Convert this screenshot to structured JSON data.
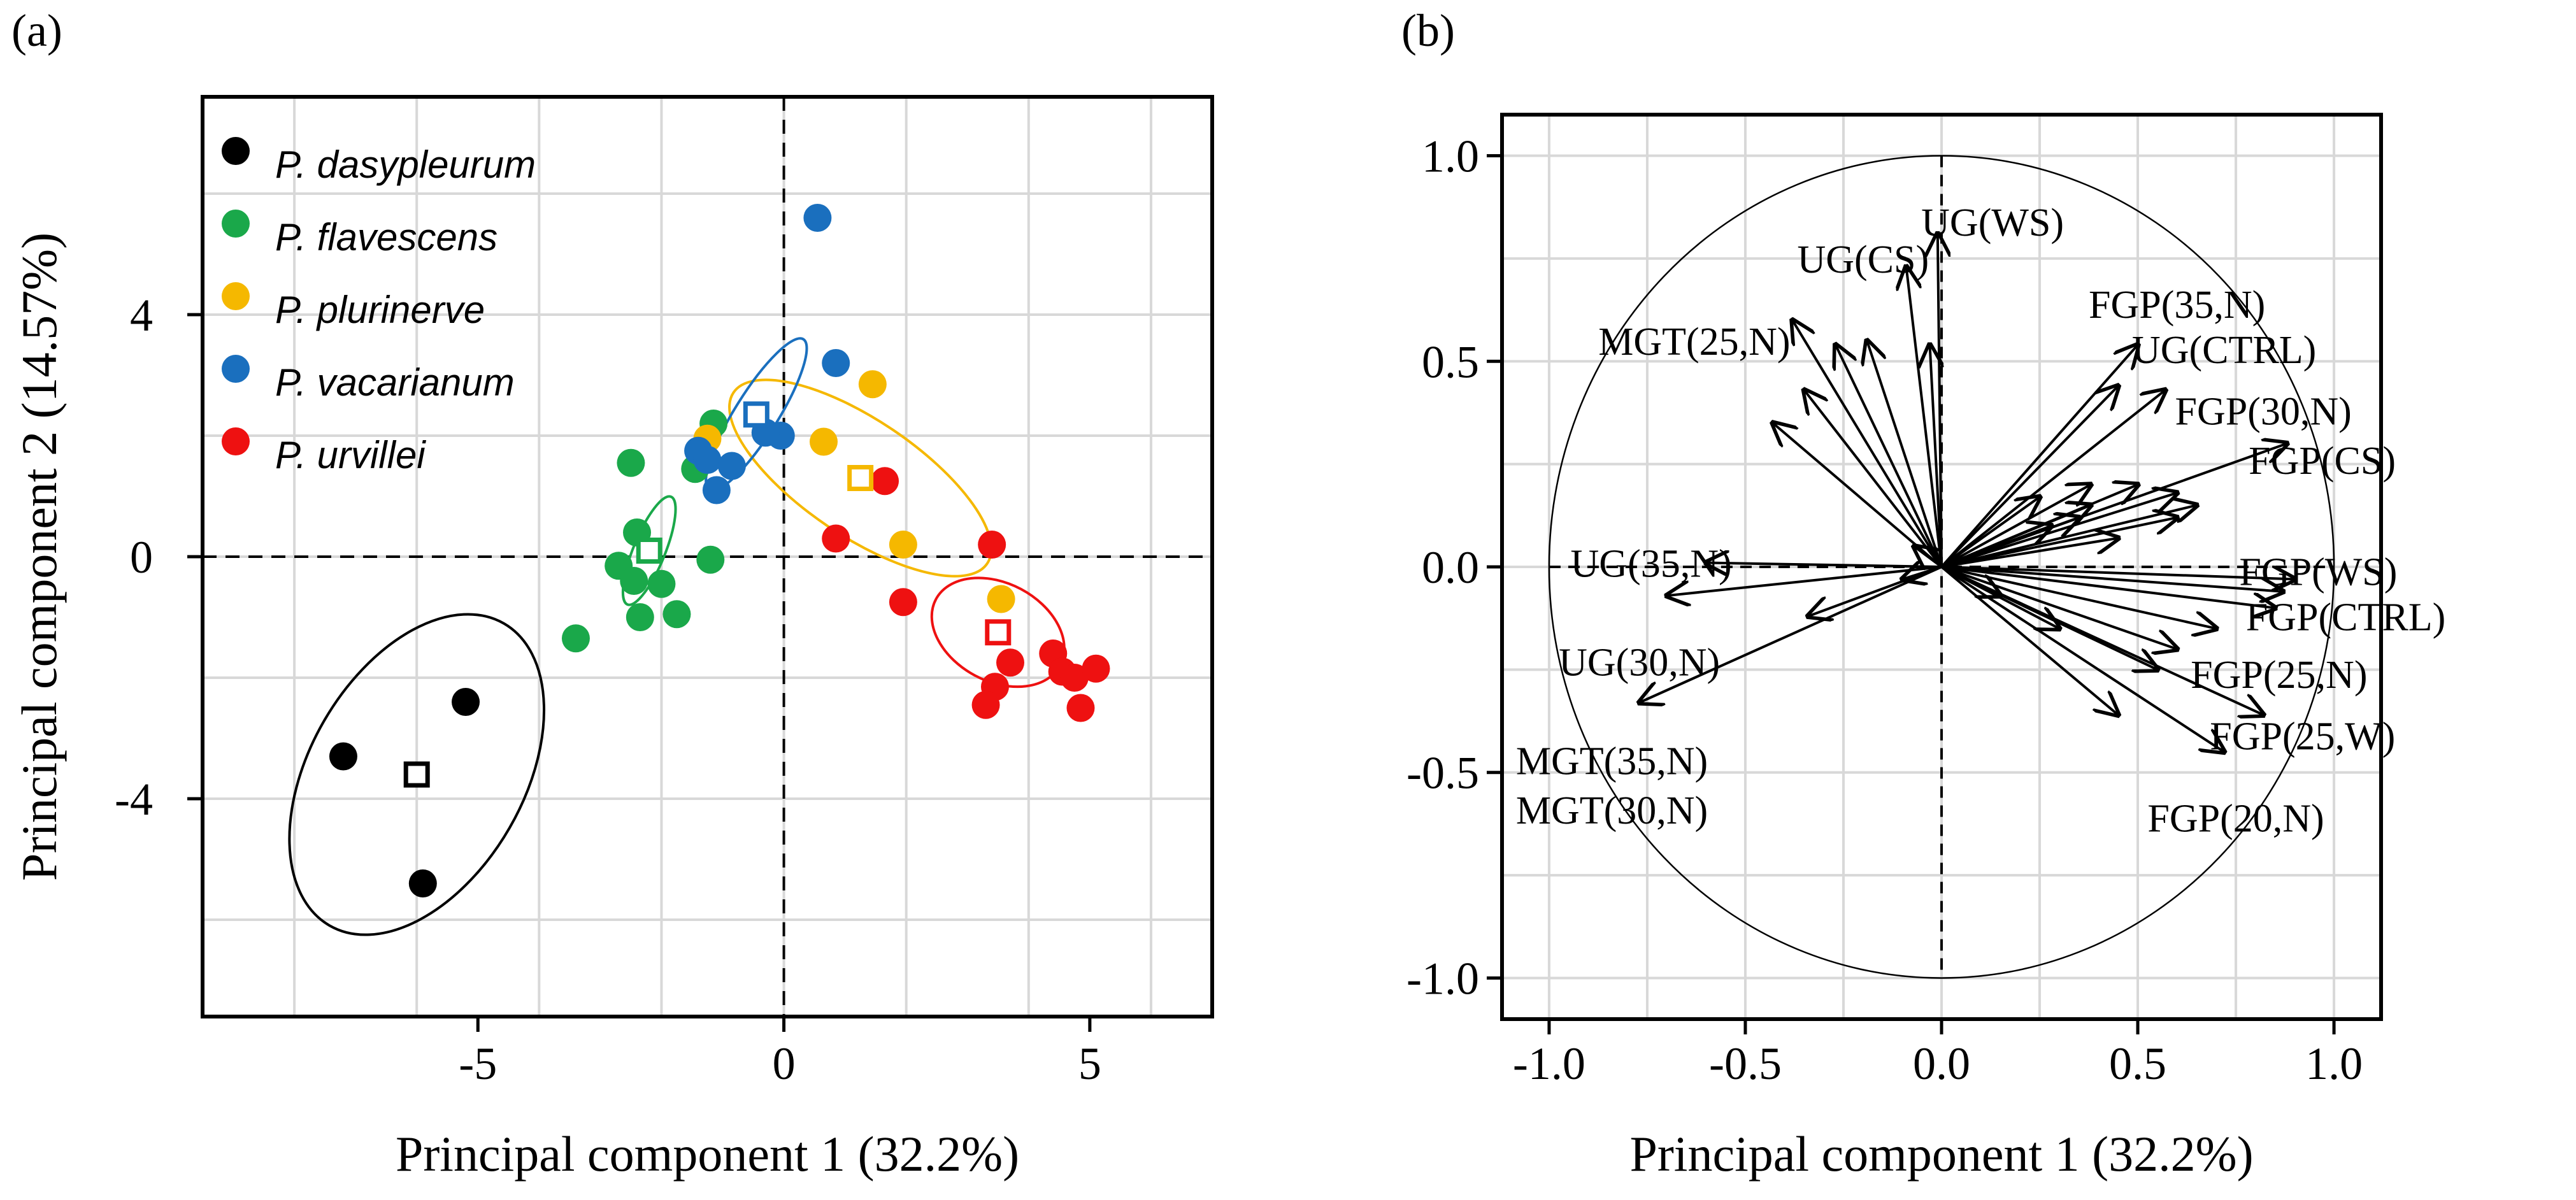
{
  "chart_data": [
    {
      "panel_label": "(a)",
      "type": "scatter",
      "xlabel": "Principal component 1 (32.2%)",
      "ylabel": "Principal component 2 (14.57%)",
      "xlim": [
        -9.5,
        7
      ],
      "ylim": [
        -7.6,
        7.6
      ],
      "xticks": [
        -5,
        0,
        5
      ],
      "xtick_labels": [
        "-5",
        "0",
        "5"
      ],
      "yticks": [
        -4,
        0,
        4
      ],
      "ytick_labels": [
        "-4",
        "0",
        "4"
      ],
      "grid": true,
      "reference_lines": {
        "x": 0,
        "y": 0,
        "style": "dashed"
      },
      "legend_position": "top-left",
      "series": [
        {
          "name": "P. dasypleurum",
          "color": "#000000",
          "points": [
            [
              -7.2,
              -3.3
            ],
            [
              -5.2,
              -2.4
            ],
            [
              -5.9,
              -5.4
            ]
          ],
          "centroid": [
            -6.0,
            -3.6
          ],
          "ellipse": {
            "rx_data": 2.85,
            "ry_data": 1.75,
            "angle_deg": -60
          }
        },
        {
          "name": "P. flavescens",
          "color": "#1aa84a",
          "points": [
            [
              -2.5,
              1.55
            ],
            [
              -1.15,
              2.2
            ],
            [
              -1.45,
              1.45
            ],
            [
              -2.4,
              0.4
            ],
            [
              -2.7,
              -0.15
            ],
            [
              -2.45,
              -0.4
            ],
            [
              -2.0,
              -0.45
            ],
            [
              -1.2,
              -0.05
            ],
            [
              -2.35,
              -1.0
            ],
            [
              -1.75,
              -0.95
            ],
            [
              -3.4,
              -1.35
            ]
          ],
          "centroid": [
            -2.2,
            0.1
          ],
          "ellipse": {
            "rx_data": 0.95,
            "ry_data": 0.26,
            "angle_deg": -68
          }
        },
        {
          "name": "P. plurinerve",
          "color": "#f5b800",
          "points": [
            [
              -1.25,
              1.95
            ],
            [
              1.45,
              2.85
            ],
            [
              0.65,
              1.9
            ],
            [
              1.95,
              0.2
            ],
            [
              3.55,
              -0.7
            ]
          ],
          "centroid": [
            1.25,
            1.3
          ],
          "ellipse": {
            "rx_data": 2.5,
            "ry_data": 0.95,
            "angle_deg": 34
          }
        },
        {
          "name": "P. vacarianum",
          "color": "#1a6fbe",
          "points": [
            [
              0.55,
              5.6
            ],
            [
              0.85,
              3.2
            ],
            [
              -0.05,
              2.0
            ],
            [
              -0.3,
              2.05
            ],
            [
              -1.4,
              1.75
            ],
            [
              -1.25,
              1.6
            ],
            [
              -0.85,
              1.5
            ],
            [
              -1.1,
              1.1
            ]
          ],
          "centroid": [
            -0.45,
            2.35
          ],
          "ellipse": {
            "rx_data": 1.45,
            "ry_data": 0.35,
            "angle_deg": -58
          }
        },
        {
          "name": "P. urvillei",
          "color": "#ee1111",
          "points": [
            [
              1.65,
              1.25
            ],
            [
              0.85,
              0.3
            ],
            [
              3.4,
              0.2
            ],
            [
              1.95,
              -0.75
            ],
            [
              4.4,
              -1.6
            ],
            [
              3.7,
              -1.75
            ],
            [
              4.55,
              -1.9
            ],
            [
              4.75,
              -2.0
            ],
            [
              5.1,
              -1.85
            ],
            [
              3.45,
              -2.15
            ],
            [
              3.3,
              -2.45
            ],
            [
              4.85,
              -2.5
            ]
          ],
          "centroid": [
            3.5,
            -1.25
          ],
          "ellipse": {
            "rx_data": 1.15,
            "ry_data": 0.8,
            "angle_deg": 28
          }
        }
      ]
    },
    {
      "panel_label": "(b)",
      "type": "biplot",
      "xlabel": "Principal component 1 (32.2%)",
      "xlim": [
        -1.12,
        1.12
      ],
      "ylim": [
        -1.1,
        1.1
      ],
      "xticks": [
        -1.0,
        -0.5,
        0.0,
        0.5,
        1.0
      ],
      "xtick_labels": [
        "-1.0",
        "-0.5",
        "0.0",
        "0.5",
        "1.0"
      ],
      "yticks": [
        -1.0,
        -0.5,
        0.0,
        0.5,
        1.0
      ],
      "ytick_labels": [
        "-1.0",
        "-0.5",
        "0.0",
        "0.5",
        "1.0"
      ],
      "grid": true,
      "unit_circle_radius": 1.0,
      "reference_lines": {
        "x": 0,
        "y": 0,
        "style": "dashed"
      },
      "vectors": [
        [
          -0.01,
          0.81
        ],
        [
          -0.09,
          0.73
        ],
        [
          -0.19,
          0.55
        ],
        [
          -0.38,
          0.6
        ],
        [
          -0.27,
          0.54
        ],
        [
          -0.35,
          0.43
        ],
        [
          -0.43,
          0.35
        ],
        [
          -0.03,
          0.54
        ],
        [
          -0.6,
          0.01
        ],
        [
          -0.7,
          -0.07
        ],
        [
          -0.34,
          -0.12
        ],
        [
          -0.1,
          -0.03
        ],
        [
          -0.77,
          -0.33
        ],
        [
          -0.07,
          0.05
        ],
        [
          0.5,
          0.54
        ],
        [
          0.57,
          0.43
        ],
        [
          0.45,
          0.44
        ],
        [
          0.88,
          0.3
        ],
        [
          0.38,
          0.2
        ],
        [
          0.25,
          0.17
        ],
        [
          0.5,
          0.2
        ],
        [
          0.6,
          0.18
        ],
        [
          0.65,
          0.15
        ],
        [
          0.6,
          0.12
        ],
        [
          0.38,
          0.15
        ],
        [
          0.45,
          0.07
        ],
        [
          0.35,
          0.12
        ],
        [
          0.28,
          0.1
        ],
        [
          0.87,
          -0.06
        ],
        [
          0.9,
          -0.03
        ],
        [
          0.85,
          -0.1
        ],
        [
          0.7,
          -0.15
        ],
        [
          0.6,
          -0.2
        ],
        [
          0.55,
          -0.25
        ],
        [
          0.82,
          -0.36
        ],
        [
          0.72,
          -0.45
        ],
        [
          0.45,
          -0.36
        ],
        [
          0.15,
          -0.07
        ],
        [
          0.3,
          -0.15
        ]
      ],
      "variable_labels": [
        "UG(WS)",
        "UG(CS)",
        "MGT(25,N)",
        "FGP(35,N)",
        "UG(CTRL)",
        "FGP(30,N)",
        "FGP(CS)",
        "UG(35,N)",
        "FGP(WS)",
        "FGP(CTRL)",
        "UG(30,N)",
        "FGP(25,N)",
        "FGP(25,W)",
        "MGT(35,N)",
        "MGT(30,N)",
        "FGP(20,N)"
      ],
      "variable_label_positions": [
        [
          0.13,
          0.84
        ],
        [
          -0.2,
          0.75
        ],
        [
          -0.63,
          0.55
        ],
        [
          0.6,
          0.64
        ],
        [
          0.72,
          0.53
        ],
        [
          0.82,
          0.38
        ],
        [
          0.97,
          0.26
        ],
        [
          -0.74,
          0.01
        ],
        [
          0.96,
          -0.01
        ],
        [
          1.03,
          -0.12
        ],
        [
          -0.77,
          -0.23
        ],
        [
          0.86,
          -0.26
        ],
        [
          0.92,
          -0.41
        ],
        [
          -0.84,
          -0.47
        ],
        [
          -0.84,
          -0.59
        ],
        [
          0.75,
          -0.61
        ]
      ]
    }
  ]
}
